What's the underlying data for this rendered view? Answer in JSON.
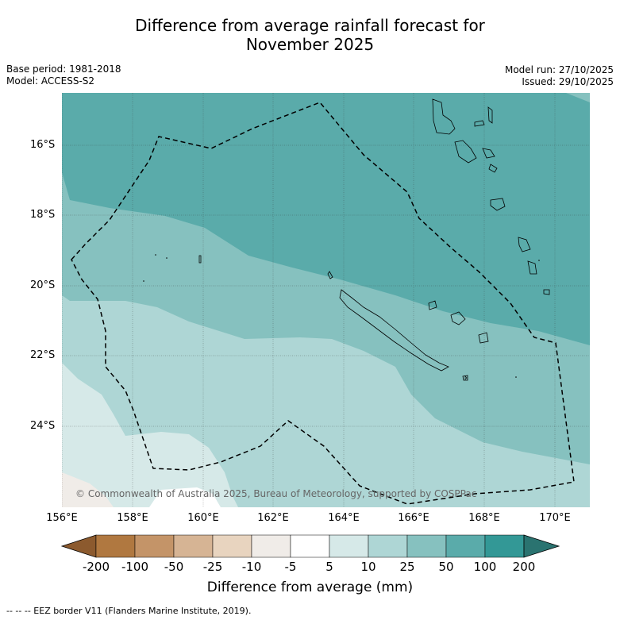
{
  "title_line1": "Difference from average rainfall forecast for",
  "title_line2": "November 2025",
  "base_period": "Base period: 1981-2018",
  "model": "Model: ACCESS-S2",
  "model_run": "Model run: 27/10/2025",
  "issued": "Issued: 29/10/2025",
  "lat_labels": [
    "16°S",
    "18°S",
    "20°S",
    "22°S",
    "24°S"
  ],
  "lon_labels": [
    "156°E",
    "158°E",
    "160°E",
    "162°E",
    "164°E",
    "166°E",
    "168°E",
    "170°E"
  ],
  "copyright": "© Commonwealth of Australia 2025, Bureau of Meteorology, supported by COSPPac",
  "colorbar": {
    "ticks": [
      "-200",
      "-100",
      "-50",
      "-25",
      "-10",
      "-5",
      "5",
      "10",
      "25",
      "50",
      "100",
      "200"
    ],
    "label": "Difference from average (mm)",
    "colors": {
      "below_min": "#8c5a2e",
      "n200_n100": "#b07840",
      "n100_n50": "#c49468",
      "n50_n25": "#d6b494",
      "n25_n10": "#e8d4bf",
      "n10_n5": "#f0ece8",
      "n5_p5": "#ffffff",
      "p5_p10": "#d6e9e8",
      "p10_p25": "#aed6d5",
      "p25_p50": "#86c1bf",
      "p50_p100": "#5aabaa",
      "p100_p200": "#339896",
      "above_max": "#2a7370"
    }
  },
  "legend": "--  --  -- EEZ border V11 (Flanders Marine Institute, 2019)."
}
